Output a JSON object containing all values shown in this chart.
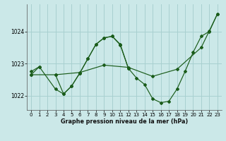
{
  "xlabel": "Graphe pression niveau de la mer (hPa)",
  "background_color": "#cbe8e8",
  "grid_color": "#a8d0d0",
  "line_color": "#1a5c1a",
  "ylim": [
    1021.55,
    1024.85
  ],
  "xlim": [
    -0.5,
    23.5
  ],
  "yticks": [
    1022,
    1023,
    1024
  ],
  "xticks": [
    0,
    1,
    2,
    3,
    4,
    5,
    6,
    7,
    8,
    9,
    10,
    11,
    12,
    13,
    14,
    15,
    16,
    17,
    18,
    19,
    20,
    21,
    22,
    23
  ],
  "series": [
    {
      "x": [
        0,
        1
      ],
      "y": [
        1022.75,
        1022.9
      ]
    },
    {
      "x": [
        0,
        1,
        3,
        4,
        5,
        6,
        7,
        8,
        9,
        10,
        11,
        12
      ],
      "y": [
        1022.65,
        1022.9,
        1022.2,
        1022.05,
        1022.3,
        1022.7,
        1023.15,
        1023.6,
        1023.8,
        1023.85,
        1023.6,
        1022.85
      ]
    },
    {
      "x": [
        3,
        4,
        5,
        6,
        7,
        8,
        9,
        10,
        11,
        12,
        13,
        14,
        15,
        16,
        17,
        18,
        19,
        20,
        21,
        22,
        23
      ],
      "y": [
        1022.65,
        1022.05,
        1022.3,
        1022.7,
        1023.15,
        1023.6,
        1023.8,
        1023.85,
        1023.58,
        1022.85,
        1022.55,
        1022.35,
        1021.9,
        1021.78,
        1021.82,
        1022.2,
        1022.75,
        1023.35,
        1023.85,
        1024.0,
        1024.55
      ]
    },
    {
      "x": [
        0,
        3,
        6,
        9,
        12,
        15,
        18,
        21,
        22,
        23
      ],
      "y": [
        1022.65,
        1022.65,
        1022.72,
        1022.95,
        1022.88,
        1022.6,
        1022.82,
        1023.5,
        1024.02,
        1024.55
      ]
    }
  ]
}
